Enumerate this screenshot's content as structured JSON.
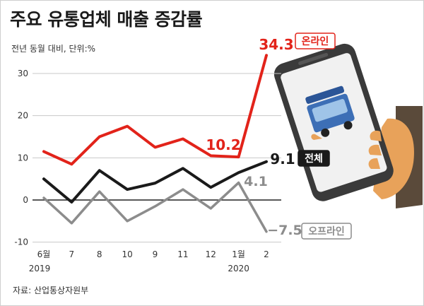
{
  "header": {
    "title": "주요 유통업체 매출 증감률",
    "subtitle": "전년 동월 대비, 단위:%"
  },
  "footer": {
    "source": "자료: 산업통상자원부"
  },
  "colors": {
    "online": "#e2231a",
    "total": "#1a1a1a",
    "offline": "#8c8c8c",
    "grid": "#c8c8c8",
    "phone_hand": "#e8a25a"
  },
  "chart_data": {
    "type": "line",
    "categories": [
      "6월",
      "7",
      "8",
      "10",
      "9",
      "11",
      "12",
      "1월",
      "2"
    ],
    "year_labels": [
      "2019",
      "2020"
    ],
    "ylim": [
      -10,
      35
    ],
    "yticks": [
      -10,
      0,
      10,
      20,
      30
    ],
    "grid": true,
    "series": [
      {
        "name": "온라인",
        "values": [
          11.5,
          8.5,
          15,
          17.5,
          12.5,
          14.5,
          10.5,
          10.2,
          34.3
        ],
        "labels": [
          {
            "index": 7,
            "text": "10.2"
          },
          {
            "index": 8,
            "text": "34.3"
          }
        ]
      },
      {
        "name": "전체",
        "values": [
          5,
          -0.5,
          7,
          2.5,
          4,
          7.5,
          3,
          6.5,
          9.1
        ],
        "labels": [
          {
            "index": 8,
            "text": "9.1"
          }
        ]
      },
      {
        "name": "오프라인",
        "values": [
          0.5,
          -5.5,
          2,
          -5,
          -1.5,
          2.5,
          -2,
          4.1,
          -7.5
        ],
        "labels": [
          {
            "index": 7,
            "text": "4.1"
          },
          {
            "index": 8,
            "text": "−7.5"
          }
        ]
      }
    ]
  },
  "illustration": {
    "icon": "smartphone-delivery-truck-icon"
  }
}
